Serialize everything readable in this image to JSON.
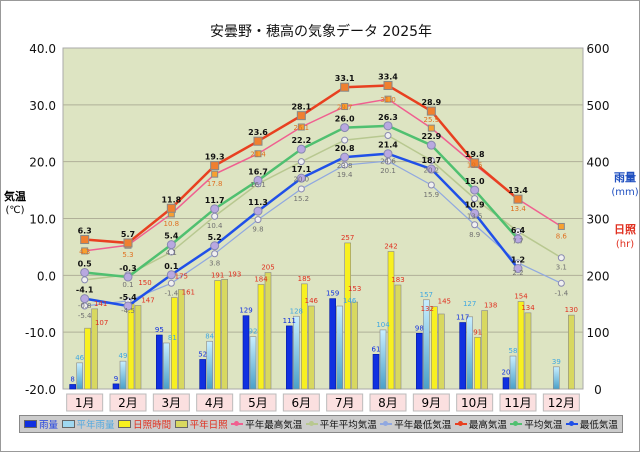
{
  "title": "安曇野・穂高の気象データ 2025年",
  "chart_data": {
    "type": "bar+line",
    "title": "安曇野・穂高の気象データ 2025年",
    "categories": [
      "1月",
      "2月",
      "3月",
      "4月",
      "5月",
      "6月",
      "7月",
      "8月",
      "9月",
      "10月",
      "11月",
      "12月"
    ],
    "left_axis": {
      "label_line1": "気温",
      "label_line2": "(℃)",
      "ylim": [
        -20,
        40
      ],
      "ticks": [
        "40.0",
        "30.0",
        "20.0",
        "10.0",
        "0.0",
        "-10.0",
        "-20.0"
      ]
    },
    "right_axis": {
      "label1_line1": "雨量",
      "label1_line2": "(mm)",
      "label2_line1": "日照",
      "label2_line2": "(hr)",
      "ylim": [
        0,
        600
      ],
      "ticks": [
        "600",
        "500",
        "400",
        "300",
        "200",
        "100",
        "0"
      ]
    },
    "grid": true,
    "legend_placement": "bottom",
    "bar_series": [
      {
        "name": "雨量",
        "color": "#1030e0",
        "values": [
          8,
          9,
          95,
          52,
          129,
          111,
          159,
          61,
          98,
          117,
          20,
          null
        ]
      },
      {
        "name": "平年雨量",
        "color": "#9fd8f0",
        "values": [
          46,
          49,
          81,
          84,
          92,
          128,
          146,
          104,
          157,
          127,
          58,
          39
        ]
      },
      {
        "name": "日照時間",
        "color": "#f8f020",
        "values": [
          107,
          150,
          161,
          191,
          184,
          185,
          257,
          242,
          145,
          91,
          154,
          null
        ]
      },
      {
        "name": "平年日照",
        "color": "#d8d860",
        "values": [
          141,
          147,
          175,
          193,
          205,
          146,
          153,
          183,
          132,
          138,
          134,
          130
        ]
      }
    ],
    "line_series": [
      {
        "name": "平年最高気温",
        "color": "#f06090",
        "values": [
          4.3,
          5.3,
          10.8,
          17.8,
          21.4,
          26.1,
          29.7,
          31.0,
          25.9,
          19.5,
          13.4,
          8.6
        ]
      },
      {
        "name": "平年平均気温",
        "color": "#b8c890",
        "values": [
          -0.8,
          0.1,
          4.1,
          10.4,
          16.1,
          20.0,
          23.8,
          24.6,
          20.2,
          13.5,
          7.7,
          3.1
        ]
      },
      {
        "name": "平年最低気温",
        "color": "#90a8e0",
        "values": [
          -5.4,
          -4.5,
          -1.4,
          3.8,
          9.8,
          15.2,
          19.4,
          20.1,
          15.9,
          8.9,
          2.2,
          -1.4
        ]
      },
      {
        "name": "最高気温",
        "color": "#e84020",
        "values": [
          6.3,
          5.7,
          11.8,
          19.3,
          23.6,
          28.1,
          33.1,
          33.4,
          28.9,
          19.8,
          13.4,
          null
        ]
      },
      {
        "name": "平均気温",
        "color": "#50c070",
        "values": [
          0.5,
          -0.3,
          5.4,
          11.7,
          16.7,
          22.2,
          26.0,
          26.3,
          22.9,
          15.0,
          6.4,
          null
        ]
      },
      {
        "name": "最低気温",
        "color": "#2050e8",
        "values": [
          -4.1,
          -5.4,
          0.1,
          5.2,
          11.3,
          17.1,
          20.8,
          21.4,
          18.7,
          10.9,
          1.2,
          null
        ]
      }
    ]
  }
}
